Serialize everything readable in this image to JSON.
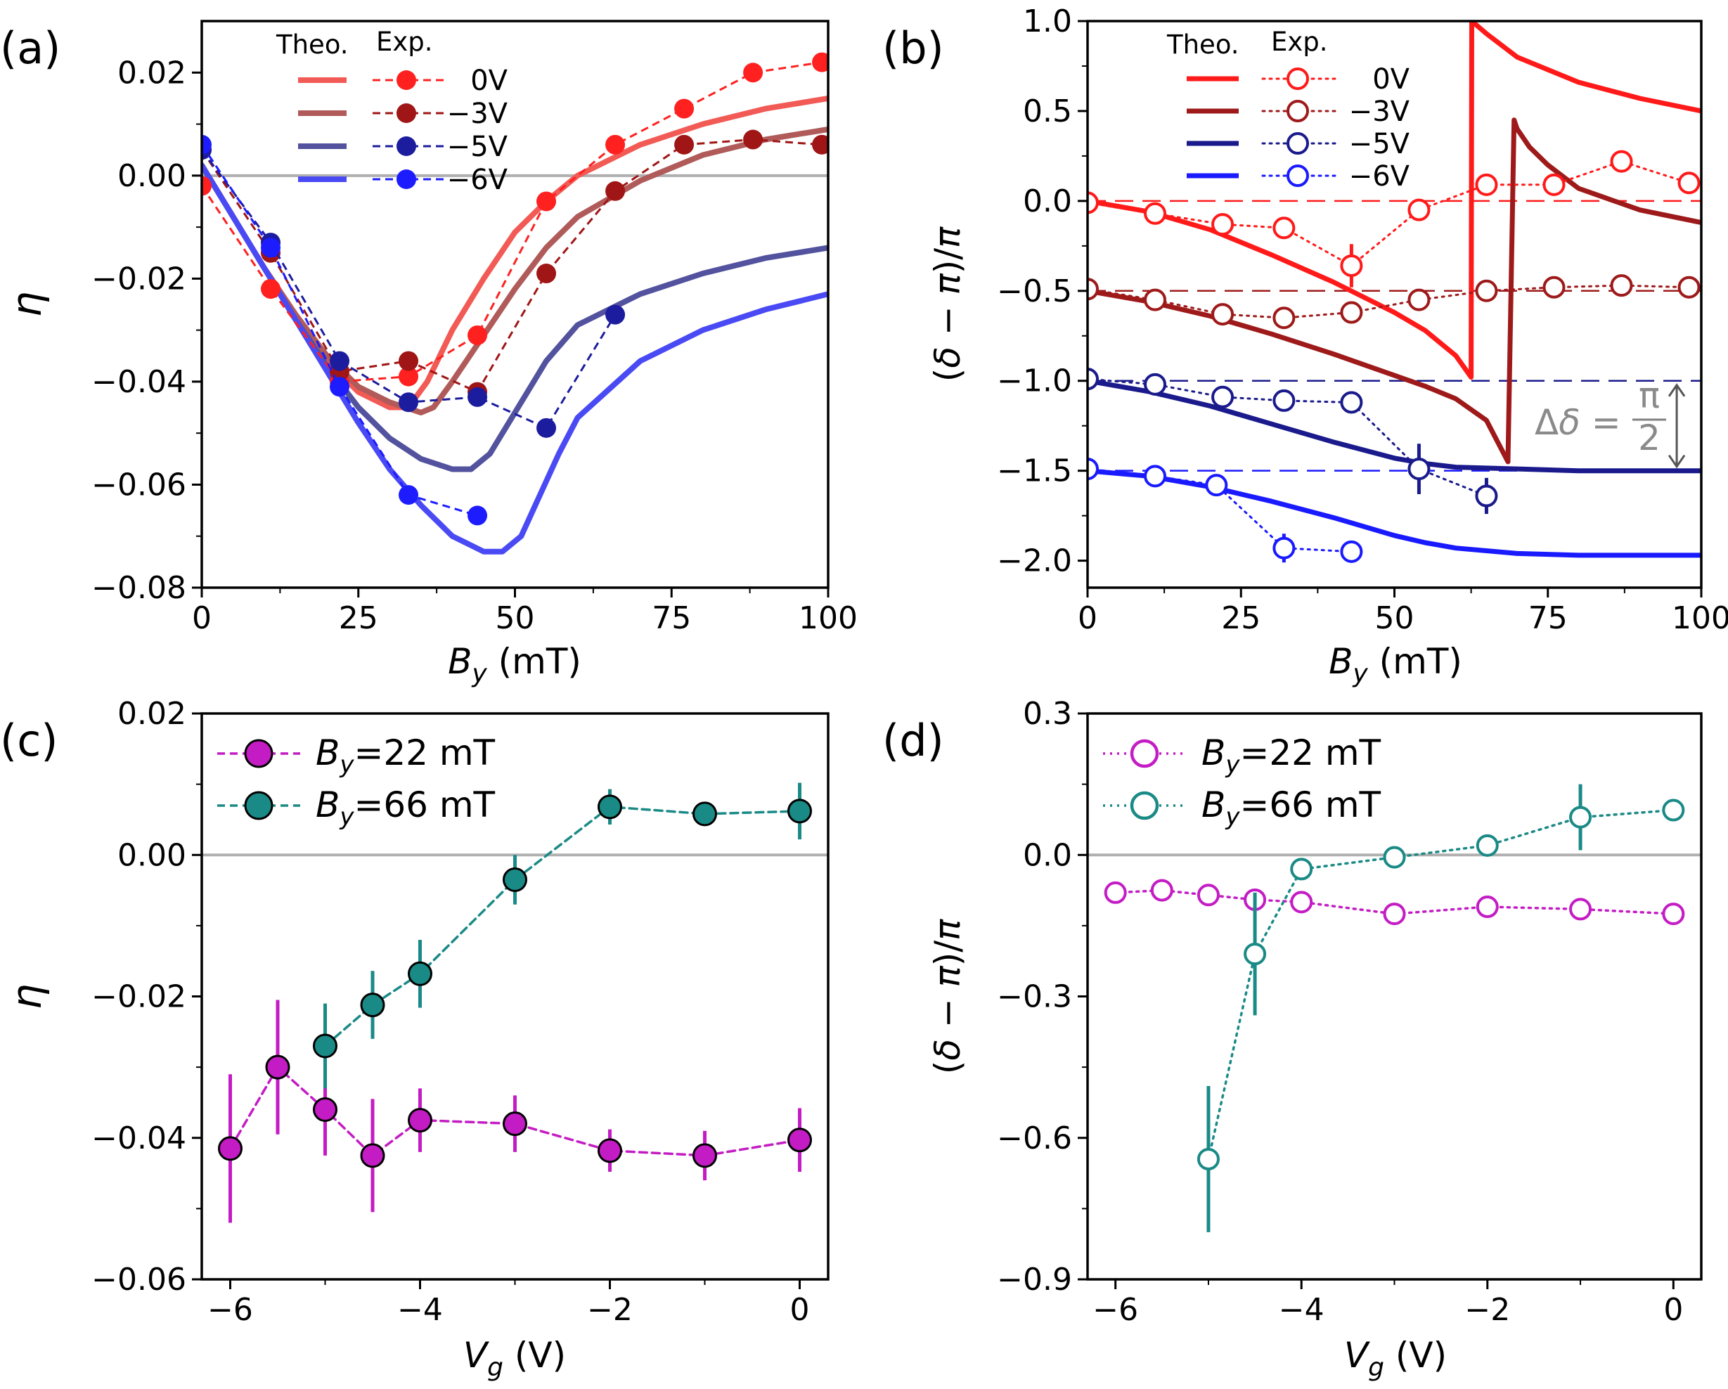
{
  "figure": {
    "panel_letters": [
      "(a)",
      "(b)",
      "(c)",
      "(d)"
    ],
    "annotation": {
      "delta_prefix": "Δδ =",
      "frac_top": "π",
      "frac_bottom": "2",
      "color": "#808080"
    },
    "legend_headers": {
      "theory": "Theo.",
      "experiment": "Exp."
    }
  },
  "chart_data": [
    {
      "panel": "(a)",
      "type": "line",
      "xlabel": "B_y (mT)",
      "ylabel": "η",
      "xlim": [
        0,
        100
      ],
      "ylim": [
        -0.08,
        0.03
      ],
      "xticks": [
        0,
        25,
        50,
        75,
        100
      ],
      "xtick_labels": [
        "0",
        "25",
        "50",
        "75",
        "100"
      ],
      "yticks": [
        -0.08,
        -0.06,
        -0.04,
        -0.02,
        0.0,
        0.02
      ],
      "ytick_labels": [
        "−0.08",
        "−0.06",
        "−0.04",
        "−0.02",
        "0.00",
        "0.02"
      ],
      "hlines": [
        {
          "y": 0,
          "color": "#b0b0b0",
          "style": "solid"
        }
      ],
      "legend": {
        "position": "top-center",
        "headers": [
          "Theo.",
          "Exp."
        ]
      },
      "series": [
        {
          "name": "0V",
          "legend_label": "0V",
          "color": "#ff2020",
          "theory_color": "#f25a55",
          "theory": {
            "x": [
              0,
              5,
              10,
              15,
              20,
              25,
              30,
              33,
              36,
              40,
              45,
              50,
              55,
              60,
              70,
              80,
              90,
              100
            ],
            "y": [
              0.002,
              -0.008,
              -0.018,
              -0.027,
              -0.036,
              -0.042,
              -0.045,
              -0.045,
              -0.04,
              -0.03,
              -0.02,
              -0.011,
              -0.005,
              0.0,
              0.006,
              0.01,
              0.013,
              0.015
            ]
          },
          "exp": {
            "x": [
              0,
              11,
              22,
              33,
              44,
              55,
              66,
              77,
              88,
              99
            ],
            "y": [
              -0.002,
              -0.022,
              -0.04,
              -0.039,
              -0.031,
              -0.005,
              0.006,
              0.013,
              0.02,
              0.022
            ]
          }
        },
        {
          "name": "−3V",
          "legend_label": "−3V",
          "color": "#a01515",
          "theory_color": "#b05a5a",
          "theory": {
            "x": [
              0,
              5,
              10,
              15,
              20,
              25,
              30,
              35,
              37,
              40,
              45,
              50,
              55,
              60,
              70,
              80,
              90,
              100
            ],
            "y": [
              0.002,
              -0.008,
              -0.018,
              -0.027,
              -0.035,
              -0.041,
              -0.044,
              -0.046,
              -0.045,
              -0.04,
              -0.031,
              -0.022,
              -0.014,
              -0.008,
              -0.001,
              0.004,
              0.007,
              0.009
            ]
          },
          "exp": {
            "x": [
              0,
              11,
              22,
              33,
              44,
              55,
              66,
              77,
              88,
              99
            ],
            "y": [
              0.005,
              -0.015,
              -0.038,
              -0.036,
              -0.042,
              -0.019,
              -0.003,
              0.006,
              0.007,
              0.006
            ]
          }
        },
        {
          "name": "−5V",
          "legend_label": "−5V",
          "color": "#1c1c9e",
          "theory_color": "#52529e",
          "theory": {
            "x": [
              0,
              5,
              10,
              15,
              20,
              25,
              30,
              35,
              40,
              43,
              46,
              50,
              55,
              60,
              70,
              80,
              90,
              100
            ],
            "y": [
              0.002,
              -0.008,
              -0.018,
              -0.028,
              -0.037,
              -0.045,
              -0.051,
              -0.055,
              -0.057,
              -0.057,
              -0.054,
              -0.046,
              -0.036,
              -0.029,
              -0.023,
              -0.019,
              -0.016,
              -0.014
            ]
          },
          "exp": {
            "x": [
              0,
              11,
              22,
              33,
              44,
              55,
              66
            ],
            "y": [
              0.005,
              -0.013,
              -0.036,
              -0.044,
              -0.043,
              -0.049,
              -0.027
            ]
          }
        },
        {
          "name": "−6V",
          "legend_label": "−6V",
          "color": "#1c1cff",
          "theory_color": "#4a4af5",
          "theory": {
            "x": [
              0,
              5,
              10,
              15,
              20,
              25,
              30,
              35,
              40,
              45,
              48,
              51,
              54,
              57,
              60,
              70,
              80,
              90,
              100
            ],
            "y": [
              0.002,
              -0.008,
              -0.018,
              -0.028,
              -0.038,
              -0.048,
              -0.057,
              -0.064,
              -0.07,
              -0.073,
              -0.073,
              -0.07,
              -0.062,
              -0.054,
              -0.047,
              -0.036,
              -0.03,
              -0.026,
              -0.023
            ]
          },
          "exp": {
            "x": [
              0,
              11,
              22,
              33,
              44
            ],
            "y": [
              0.006,
              -0.014,
              -0.041,
              -0.062,
              -0.066
            ]
          }
        }
      ]
    },
    {
      "panel": "(b)",
      "type": "line",
      "xlabel": "B_y (mT)",
      "ylabel": "(δ − π)/π",
      "xlim": [
        0,
        100
      ],
      "ylim": [
        -2.15,
        1.0
      ],
      "xticks": [
        0,
        25,
        50,
        75,
        100
      ],
      "xtick_labels": [
        "0",
        "25",
        "50",
        "75",
        "100"
      ],
      "yticks": [
        -2.0,
        -1.5,
        -1.0,
        -0.5,
        0.0,
        0.5,
        1.0
      ],
      "ytick_labels": [
        "−2.0",
        "−1.5",
        "−1.0",
        "−0.5",
        "0.0",
        "0.5",
        "1.0"
      ],
      "legend": {
        "position": "top-left",
        "headers": [
          "Theo.",
          "Exp."
        ]
      },
      "annotation": {
        "text": "Δδ = π/2",
        "between_y": [
          -1.0,
          -1.5
        ],
        "at_x": 96
      },
      "series": [
        {
          "name": "0V",
          "legend_label": "0V",
          "color": "#ff1a1a",
          "offset": 0.0,
          "theory": {
            "x": [
              0,
              10,
              20,
              30,
              40,
              50,
              55,
              60,
              62.5,
              62.6,
              65,
              70,
              80,
              90,
              100
            ],
            "y": [
              0.0,
              -0.06,
              -0.16,
              -0.3,
              -0.45,
              -0.62,
              -0.72,
              -0.86,
              -0.98,
              1.0,
              0.93,
              0.8,
              0.66,
              0.57,
              0.5
            ]
          },
          "exp": {
            "x": [
              0,
              11,
              22,
              32,
              43,
              54,
              65,
              76,
              87,
              98
            ],
            "y": [
              -0.01,
              -0.07,
              -0.13,
              -0.15,
              -0.36,
              -0.05,
              0.09,
              0.09,
              0.22,
              0.1
            ],
            "err": [
              0.02,
              0.03,
              0.04,
              0.04,
              0.12,
              0.04,
              0.03,
              0.03,
              0.03,
              0.03
            ]
          }
        },
        {
          "name": "−3V",
          "legend_label": "−3V",
          "color": "#9e1a1a",
          "offset": -0.5,
          "theory": {
            "x": [
              0,
              10,
              20,
              30,
              40,
              50,
              55,
              60,
              65,
              68.5,
              69.5,
              70,
              72,
              75,
              80,
              90,
              100
            ],
            "y": [
              -0.5,
              -0.56,
              -0.64,
              -0.74,
              -0.85,
              -0.97,
              -1.03,
              -1.1,
              -1.22,
              -1.45,
              0.45,
              0.4,
              0.3,
              0.2,
              0.07,
              -0.05,
              -0.12
            ]
          },
          "exp": {
            "x": [
              0,
              11,
              22,
              32,
              43,
              54,
              65,
              76,
              87,
              98
            ],
            "y": [
              -0.49,
              -0.55,
              -0.63,
              -0.65,
              -0.62,
              -0.55,
              -0.5,
              -0.48,
              -0.47,
              -0.48
            ],
            "err": [
              0.02,
              0.02,
              0.03,
              0.03,
              0.04,
              0.03,
              0.03,
              0.02,
              0.02,
              0.02
            ]
          }
        },
        {
          "name": "−5V",
          "legend_label": "−5V",
          "color": "#1a1a8c",
          "offset": -1.0,
          "theory": {
            "x": [
              0,
              10,
              20,
              30,
              40,
              50,
              55,
              60,
              70,
              80,
              90,
              100
            ],
            "y": [
              -1.0,
              -1.06,
              -1.14,
              -1.24,
              -1.34,
              -1.43,
              -1.46,
              -1.48,
              -1.49,
              -1.5,
              -1.5,
              -1.5
            ]
          },
          "exp": {
            "x": [
              0,
              11,
              22,
              32,
              43,
              54,
              65
            ],
            "y": [
              -0.99,
              -1.02,
              -1.09,
              -1.11,
              -1.12,
              -1.49,
              -1.64
            ],
            "err": [
              0.02,
              0.03,
              0.03,
              0.04,
              0.05,
              0.14,
              0.1
            ]
          }
        },
        {
          "name": "−6V",
          "legend_label": "−6V",
          "color": "#1a1aff",
          "offset": -1.5,
          "theory": {
            "x": [
              0,
              10,
              20,
              30,
              40,
              50,
              55,
              60,
              70,
              80,
              90,
              100
            ],
            "y": [
              -1.5,
              -1.53,
              -1.59,
              -1.67,
              -1.76,
              -1.86,
              -1.9,
              -1.93,
              -1.96,
              -1.97,
              -1.97,
              -1.97
            ]
          },
          "exp": {
            "x": [
              0,
              11,
              21,
              32,
              43
            ],
            "y": [
              -1.49,
              -1.53,
              -1.58,
              -1.93,
              -1.95
            ],
            "err": [
              0.02,
              0.02,
              0.03,
              0.08,
              0.05
            ]
          }
        }
      ]
    },
    {
      "panel": "(c)",
      "type": "line",
      "xlabel": "V_g (V)",
      "ylabel": "η",
      "xlim": [
        -6.3,
        0.3
      ],
      "ylim": [
        -0.06,
        0.02
      ],
      "xticks": [
        -6,
        -4,
        -2,
        0
      ],
      "xtick_labels": [
        "−6",
        "−4",
        "−2",
        "0"
      ],
      "yticks": [
        -0.06,
        -0.04,
        -0.02,
        0.0,
        0.02
      ],
      "ytick_labels": [
        "−0.06",
        "−0.04",
        "−0.02",
        "0.00",
        "0.02"
      ],
      "hlines": [
        {
          "y": 0,
          "color": "#b0b0b0",
          "style": "solid"
        }
      ],
      "legend": {
        "position": "top-left"
      },
      "series": [
        {
          "name": "By=22 mT",
          "legend_prefix": "B",
          "legend_sub": "y",
          "legend_rest": "=22 mT",
          "color": "#c41cc4",
          "x": [
            -6,
            -5.5,
            -5,
            -4.5,
            -4,
            -3,
            -2,
            -1,
            0
          ],
          "y": [
            -0.0415,
            -0.03,
            -0.036,
            -0.0425,
            -0.0375,
            -0.038,
            -0.0418,
            -0.0425,
            -0.0403
          ],
          "err": [
            0.0105,
            0.0095,
            0.0065,
            0.008,
            0.0045,
            0.004,
            0.003,
            0.0035,
            0.0045
          ]
        },
        {
          "name": "By=66 mT",
          "legend_prefix": "B",
          "legend_sub": "y",
          "legend_rest": "=66 mT",
          "color": "#1a8a86",
          "x": [
            -5,
            -4.5,
            -4,
            -3,
            -2,
            -1,
            0
          ],
          "y": [
            -0.027,
            -0.0212,
            -0.0168,
            -0.0035,
            0.0068,
            0.0058,
            0.0062
          ],
          "err": [
            0.006,
            0.0048,
            0.0048,
            0.0035,
            0.0025,
            0.001,
            0.004
          ]
        }
      ]
    },
    {
      "panel": "(d)",
      "type": "line",
      "xlabel": "V_g (V)",
      "ylabel": "(δ − π)/π",
      "xlim": [
        -6.3,
        0.3
      ],
      "ylim": [
        -0.9,
        0.3
      ],
      "xticks": [
        -6,
        -4,
        -2,
        0
      ],
      "xtick_labels": [
        "−6",
        "−4",
        "−2",
        "0"
      ],
      "yticks": [
        -0.9,
        -0.6,
        -0.3,
        0.0,
        0.3
      ],
      "ytick_labels": [
        "−0.9",
        "−0.6",
        "−0.3",
        "0.0",
        "0.3"
      ],
      "hlines": [
        {
          "y": 0,
          "color": "#b0b0b0",
          "style": "solid"
        }
      ],
      "legend": {
        "position": "top-left"
      },
      "series": [
        {
          "name": "By=22 mT",
          "legend_prefix": "B",
          "legend_sub": "y",
          "legend_rest": "=22 mT",
          "color": "#c41cc4",
          "x": [
            -6,
            -5.5,
            -5,
            -4.5,
            -4,
            -3,
            -2,
            -1,
            0
          ],
          "y": [
            -0.08,
            -0.075,
            -0.085,
            -0.095,
            -0.1,
            -0.125,
            -0.11,
            -0.115,
            -0.125
          ],
          "err": [
            0.015,
            0.015,
            0.015,
            0.02,
            0.015,
            0.015,
            0.015,
            0.015,
            0.015
          ]
        },
        {
          "name": "By=66 mT",
          "legend_prefix": "B",
          "legend_sub": "y",
          "legend_rest": "=66 mT",
          "color": "#1a8a86",
          "x": [
            -5,
            -4.5,
            -4,
            -3,
            -2,
            -1,
            0
          ],
          "y": [
            -0.645,
            -0.21,
            -0.03,
            -0.005,
            0.02,
            0.08,
            0.095
          ],
          "err": [
            0.155,
            0.13,
            0.02,
            0.015,
            0.015,
            0.07,
            0.02
          ]
        }
      ]
    }
  ]
}
